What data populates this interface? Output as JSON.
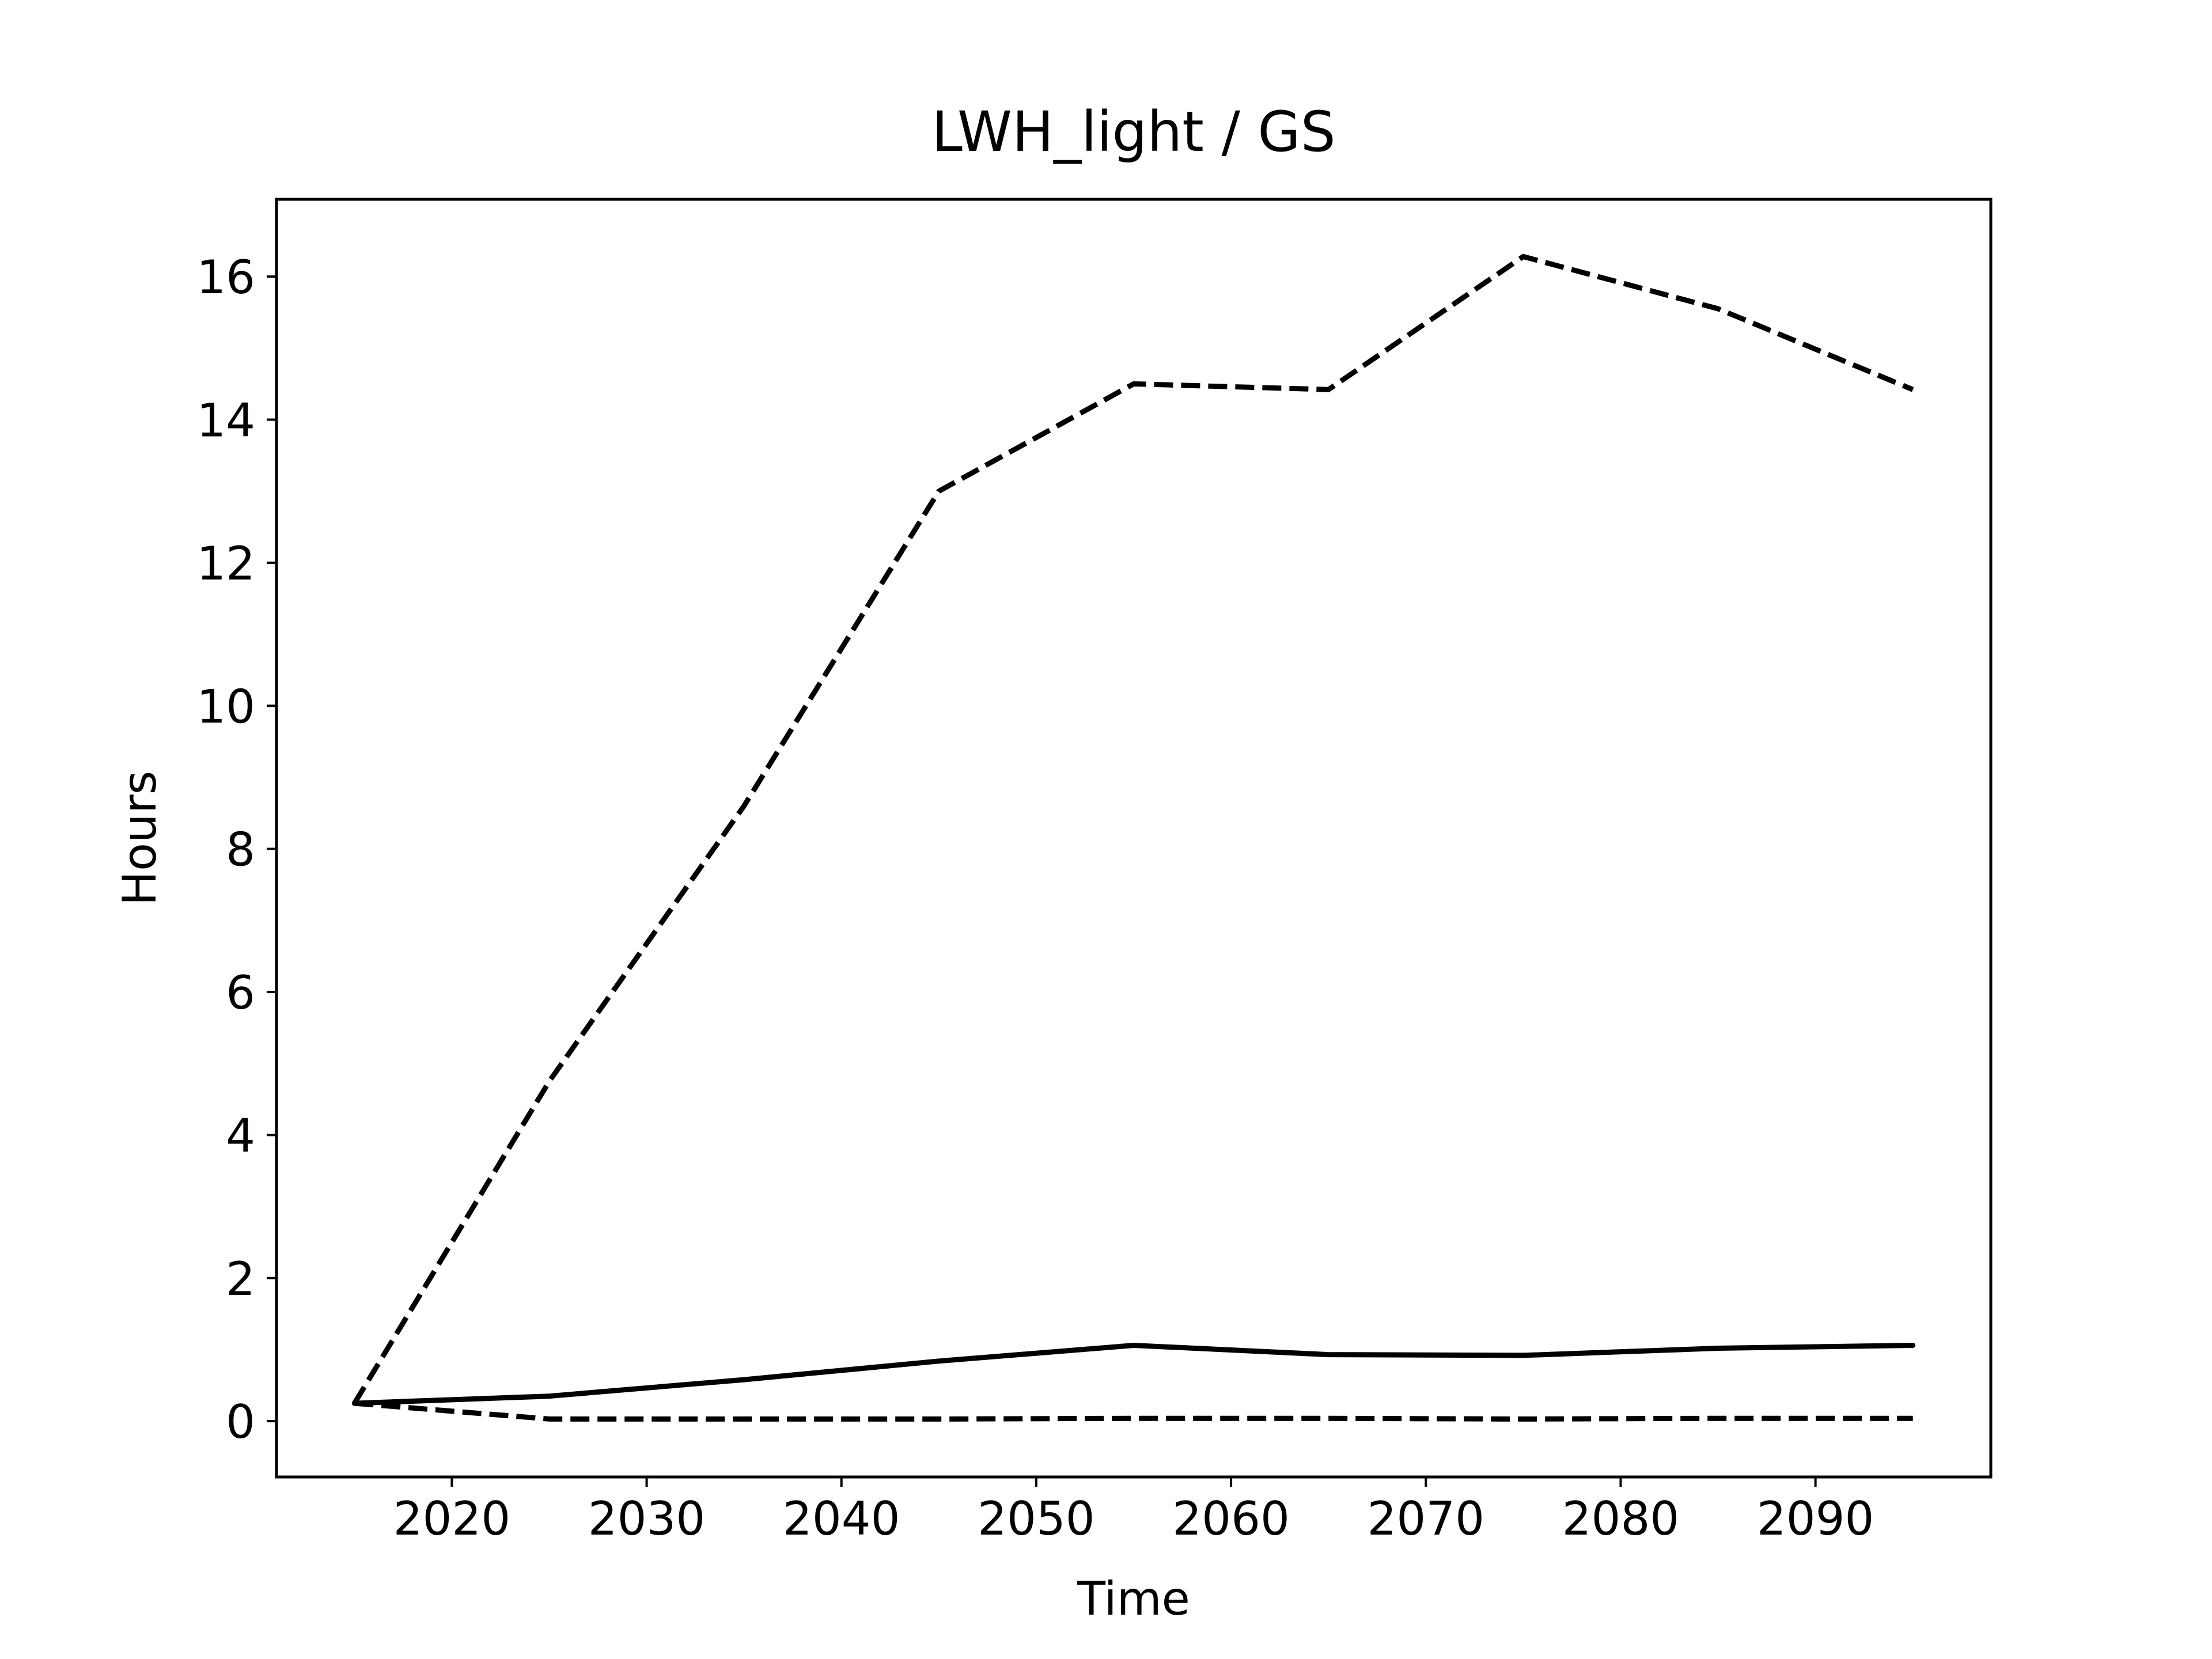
{
  "chart_data": {
    "type": "line",
    "title": "LWH_light / GS",
    "xlabel": "Time",
    "ylabel": "Hours",
    "xlim": [
      2011,
      2099
    ],
    "ylim": [
      -0.78,
      17.08
    ],
    "xticks": [
      2020,
      2030,
      2040,
      2050,
      2060,
      2070,
      2080,
      2090
    ],
    "yticks": [
      0,
      2,
      4,
      6,
      8,
      10,
      12,
      14,
      16
    ],
    "x": [
      2015,
      2025,
      2035,
      2045,
      2055,
      2065,
      2075,
      2085,
      2095
    ],
    "series": [
      {
        "style": "dashed",
        "color": "#000000",
        "values": [
          0.25,
          4.75,
          8.6,
          13.0,
          14.5,
          14.42,
          16.28,
          15.55,
          14.42
        ]
      },
      {
        "style": "solid",
        "color": "#000000",
        "values": [
          0.25,
          0.35,
          0.58,
          0.84,
          1.06,
          0.93,
          0.92,
          1.02,
          1.06
        ]
      },
      {
        "style": "dashed",
        "color": "#000000",
        "values": [
          0.25,
          0.03,
          0.03,
          0.03,
          0.04,
          0.04,
          0.03,
          0.04,
          0.04
        ]
      }
    ],
    "grid": false,
    "legend": "none"
  }
}
